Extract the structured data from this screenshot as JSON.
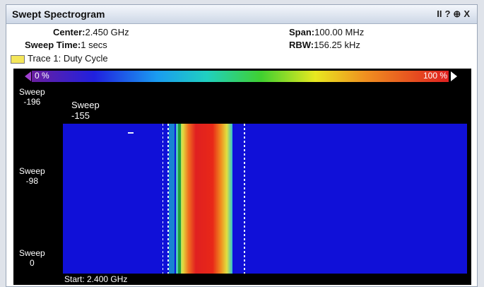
{
  "window": {
    "title": "Swept Spectrogram",
    "controls": [
      "II",
      "?",
      "⊕",
      "X"
    ]
  },
  "settings": {
    "center_label": "Center:",
    "center_value": "2.450 GHz",
    "sweep_time_label": "Sweep Time:",
    "sweep_time_value": "1 secs",
    "span_label": "Span:",
    "span_value": "100.00 MHz",
    "rbw_label": "RBW:",
    "rbw_value": "156.25 kHz",
    "trace": "Trace 1: Duty Cycle"
  },
  "color_bar": {
    "min_label": "0 %",
    "max_label": "100 %"
  },
  "plot": {
    "y_labels": [
      {
        "name": "Sweep",
        "value": "-196"
      },
      {
        "name": "Sweep",
        "value": "-98"
      },
      {
        "name": "Sweep",
        "value": "0"
      }
    ],
    "marker": {
      "name": "Sweep",
      "value": "-155"
    },
    "start": "Start: 2.400 GHz"
  }
}
